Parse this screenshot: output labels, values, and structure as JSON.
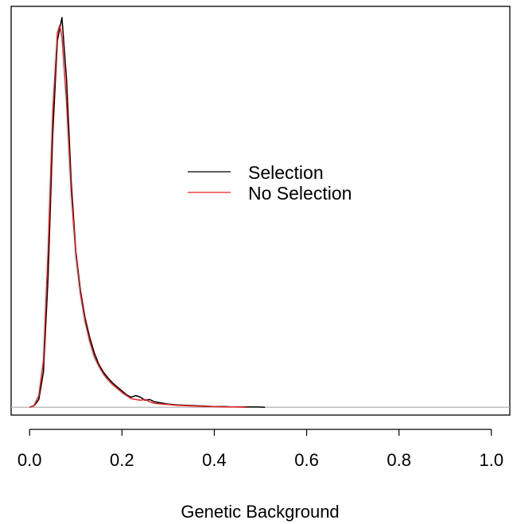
{
  "chart_data": {
    "type": "line",
    "title": "",
    "xlabel": "Genetic Background",
    "ylabel": "",
    "xlim": [
      -0.04,
      1.04
    ],
    "ylim": [
      -0.02,
      1.0
    ],
    "x_ticks": [
      0.0,
      0.2,
      0.4,
      0.6,
      0.8,
      1.0
    ],
    "x_tick_labels": [
      "0.0",
      "0.2",
      "0.4",
      "0.6",
      "0.8",
      "1.0"
    ],
    "y_ticks_shown": false,
    "grid": false,
    "baseline": 0,
    "legend": {
      "placement": "center",
      "entries": [
        "Selection",
        "No Selection"
      ]
    },
    "colors": {
      "selection": "#000000",
      "no_selection": "#ee2222",
      "baseline": "#aaaaaa",
      "axis": "#000000"
    },
    "series": [
      {
        "name": "Selection",
        "color": "#000000",
        "x": [
          0.0,
          0.01,
          0.02,
          0.03,
          0.04,
          0.05,
          0.06,
          0.07,
          0.08,
          0.09,
          0.1,
          0.11,
          0.12,
          0.13,
          0.14,
          0.15,
          0.16,
          0.17,
          0.18,
          0.19,
          0.2,
          0.21,
          0.22,
          0.23,
          0.24,
          0.25,
          0.26,
          0.27,
          0.28,
          0.29,
          0.3,
          0.32,
          0.34,
          0.36,
          0.38,
          0.4,
          0.42,
          0.44,
          0.46,
          0.48,
          0.5,
          0.51
        ],
        "y": [
          0.0,
          0.004,
          0.02,
          0.09,
          0.33,
          0.7,
          0.94,
          1.0,
          0.84,
          0.58,
          0.4,
          0.3,
          0.23,
          0.18,
          0.14,
          0.11,
          0.09,
          0.075,
          0.062,
          0.052,
          0.042,
          0.032,
          0.026,
          0.03,
          0.026,
          0.018,
          0.02,
          0.014,
          0.012,
          0.01,
          0.008,
          0.006,
          0.005,
          0.004,
          0.003,
          0.002,
          0.002,
          0.001,
          0.001,
          0.001,
          0.0006,
          0.0
        ]
      },
      {
        "name": "No Selection",
        "color": "#ee2222",
        "x": [
          0.0,
          0.01,
          0.02,
          0.03,
          0.04,
          0.05,
          0.06,
          0.065,
          0.07,
          0.08,
          0.09,
          0.1,
          0.11,
          0.12,
          0.13,
          0.14,
          0.15,
          0.16,
          0.17,
          0.18,
          0.19,
          0.2,
          0.21,
          0.22,
          0.23,
          0.24,
          0.25,
          0.26,
          0.27,
          0.28,
          0.29,
          0.3,
          0.32,
          0.34,
          0.36,
          0.38,
          0.4,
          0.42,
          0.44,
          0.46,
          0.47
        ],
        "y": [
          0.0,
          0.005,
          0.03,
          0.12,
          0.4,
          0.76,
          0.96,
          0.98,
          0.95,
          0.78,
          0.55,
          0.39,
          0.29,
          0.22,
          0.17,
          0.13,
          0.105,
          0.085,
          0.07,
          0.058,
          0.048,
          0.038,
          0.03,
          0.022,
          0.02,
          0.018,
          0.02,
          0.014,
          0.01,
          0.009,
          0.008,
          0.007,
          0.005,
          0.004,
          0.003,
          0.002,
          0.002,
          0.001,
          0.001,
          0.0005,
          0.0
        ]
      }
    ]
  }
}
